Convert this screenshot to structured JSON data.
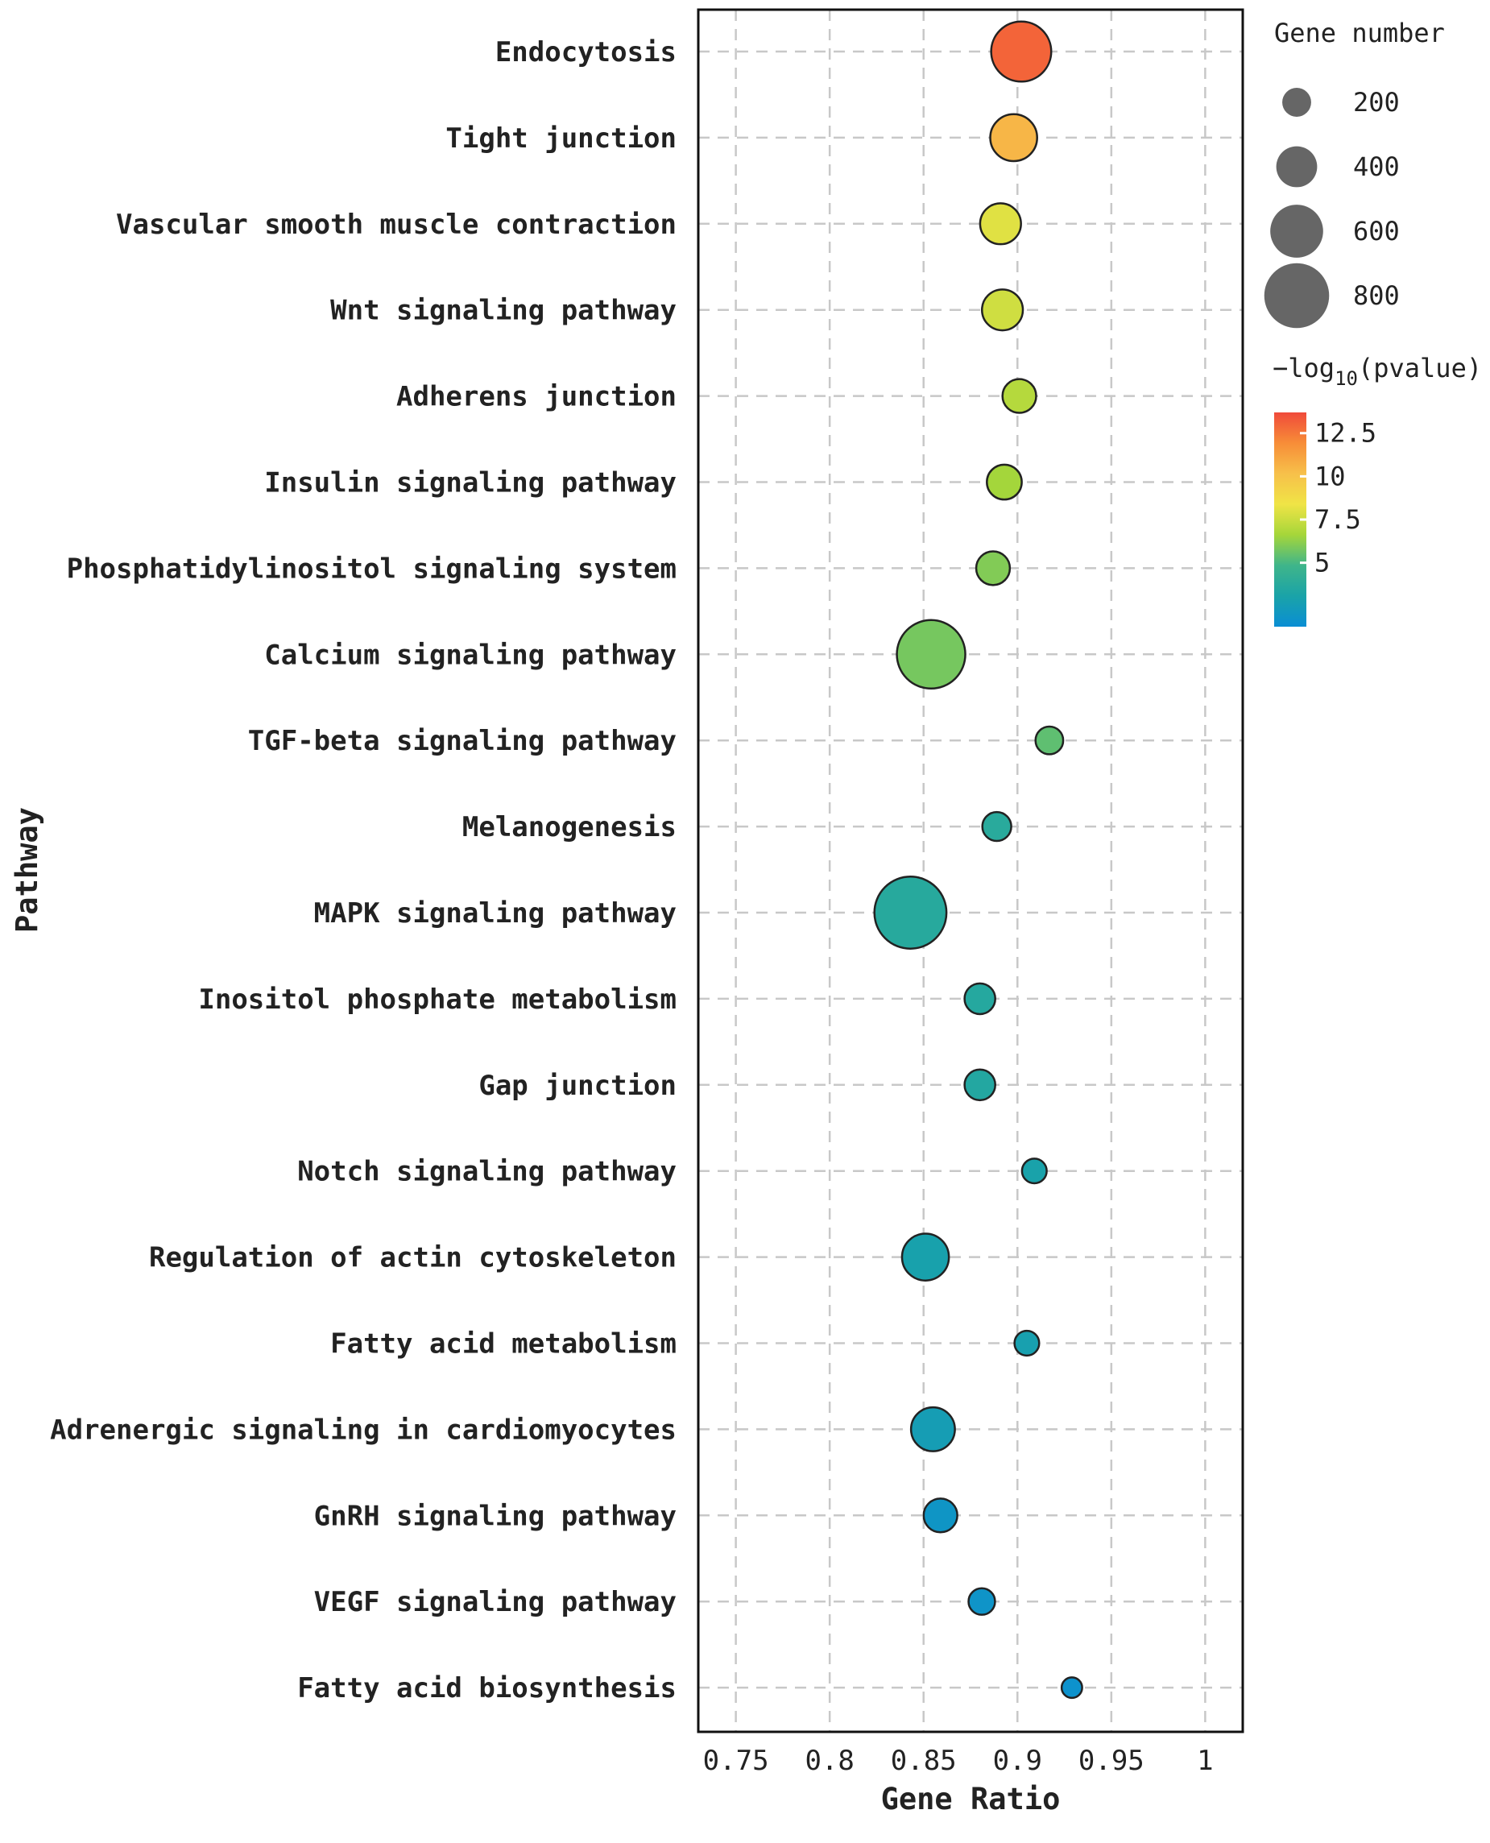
{
  "chart_data": {
    "type": "scatter",
    "xlabel": "Gene Ratio",
    "ylabel": "Pathway",
    "xlim": [
      0.73,
      1.02
    ],
    "x_ticks": [
      0.75,
      0.8,
      0.85,
      0.9,
      0.95,
      1
    ],
    "x_tick_labels": [
      "0.75",
      "0.8",
      "0.85",
      "0.9",
      "0.95",
      "1"
    ],
    "grid": true,
    "categories": [
      "Endocytosis",
      "Tight junction",
      "Vascular smooth muscle contraction",
      "Wnt signaling pathway",
      "Adherens junction",
      "Insulin signaling pathway",
      "Phosphatidylinositol signaling system",
      "Calcium signaling pathway",
      "TGF-beta signaling pathway",
      "Melanogenesis",
      "MAPK signaling pathway",
      "Inositol phosphate metabolism",
      "Gap junction",
      "Notch signaling pathway",
      "Regulation of actin cytoskeleton",
      "Fatty acid metabolism",
      "Adrenergic signaling in cardiomyocytes",
      "GnRH signaling pathway",
      "VEGF signaling pathway",
      "Fatty acid biosynthesis"
    ],
    "points": [
      {
        "pathway": "Endocytosis",
        "gene_ratio": 0.902,
        "gene_number": 720,
        "neg_log10_p": 13.0
      },
      {
        "pathway": "Tight junction",
        "gene_ratio": 0.898,
        "gene_number": 500,
        "neg_log10_p": 10.5
      },
      {
        "pathway": "Vascular smooth muscle contraction",
        "gene_ratio": 0.891,
        "gene_number": 400,
        "neg_log10_p": 8.0
      },
      {
        "pathway": "Wnt signaling pathway",
        "gene_ratio": 0.892,
        "gene_number": 400,
        "neg_log10_p": 7.6
      },
      {
        "pathway": "Adherens junction",
        "gene_ratio": 0.901,
        "gene_number": 280,
        "neg_log10_p": 7.0
      },
      {
        "pathway": "Insulin signaling pathway",
        "gene_ratio": 0.893,
        "gene_number": 300,
        "neg_log10_p": 6.6
      },
      {
        "pathway": "Phosphatidylinositol signaling system",
        "gene_ratio": 0.887,
        "gene_number": 280,
        "neg_log10_p": 6.0
      },
      {
        "pathway": "Calcium signaling pathway",
        "gene_ratio": 0.854,
        "gene_number": 860,
        "neg_log10_p": 5.8
      },
      {
        "pathway": "TGF-beta signaling pathway",
        "gene_ratio": 0.917,
        "gene_number": 180,
        "neg_log10_p": 5.4
      },
      {
        "pathway": "Melanogenesis",
        "gene_ratio": 0.889,
        "gene_number": 200,
        "neg_log10_p": 3.8
      },
      {
        "pathway": "MAPK signaling pathway",
        "gene_ratio": 0.843,
        "gene_number": 920,
        "neg_log10_p": 3.7
      },
      {
        "pathway": "Inositol phosphate metabolism",
        "gene_ratio": 0.88,
        "gene_number": 230,
        "neg_log10_p": 3.6
      },
      {
        "pathway": "Gap junction",
        "gene_ratio": 0.88,
        "gene_number": 230,
        "neg_log10_p": 3.5
      },
      {
        "pathway": "Notch signaling pathway",
        "gene_ratio": 0.909,
        "gene_number": 130,
        "neg_log10_p": 3.0
      },
      {
        "pathway": "Regulation of actin cytoskeleton",
        "gene_ratio": 0.851,
        "gene_number": 500,
        "neg_log10_p": 2.9
      },
      {
        "pathway": "Fatty acid metabolism",
        "gene_ratio": 0.905,
        "gene_number": 130,
        "neg_log10_p": 2.8
      },
      {
        "pathway": "Adrenergic signaling in cardiomyocytes",
        "gene_ratio": 0.855,
        "gene_number": 450,
        "neg_log10_p": 2.6
      },
      {
        "pathway": "GnRH signaling pathway",
        "gene_ratio": 0.859,
        "gene_number": 280,
        "neg_log10_p": 1.9
      },
      {
        "pathway": "VEGF signaling pathway",
        "gene_ratio": 0.881,
        "gene_number": 160,
        "neg_log10_p": 1.8
      },
      {
        "pathway": "Fatty acid biosynthesis",
        "gene_ratio": 0.929,
        "gene_number": 60,
        "neg_log10_p": 1.6
      }
    ],
    "size_legend": {
      "title": "Gene number",
      "values": [
        200,
        400,
        600,
        800
      ],
      "labels": [
        "200",
        "400",
        "600",
        "800"
      ]
    },
    "color_legend": {
      "title_prefix": "−log",
      "title_subscript": "10",
      "title_suffix": "(pvalue)",
      "range": [
        1.3,
        13.7
      ],
      "ticks": [
        12.5,
        10,
        7.5,
        5
      ],
      "tick_labels": [
        "12.5",
        "10",
        "7.5",
        "5"
      ],
      "colormap": [
        "#0a8ed4",
        "#1aa3a8",
        "#3fb58a",
        "#a5d63a",
        "#f0e446",
        "#f7c04a",
        "#f78d38",
        "#f04a3a"
      ]
    }
  }
}
